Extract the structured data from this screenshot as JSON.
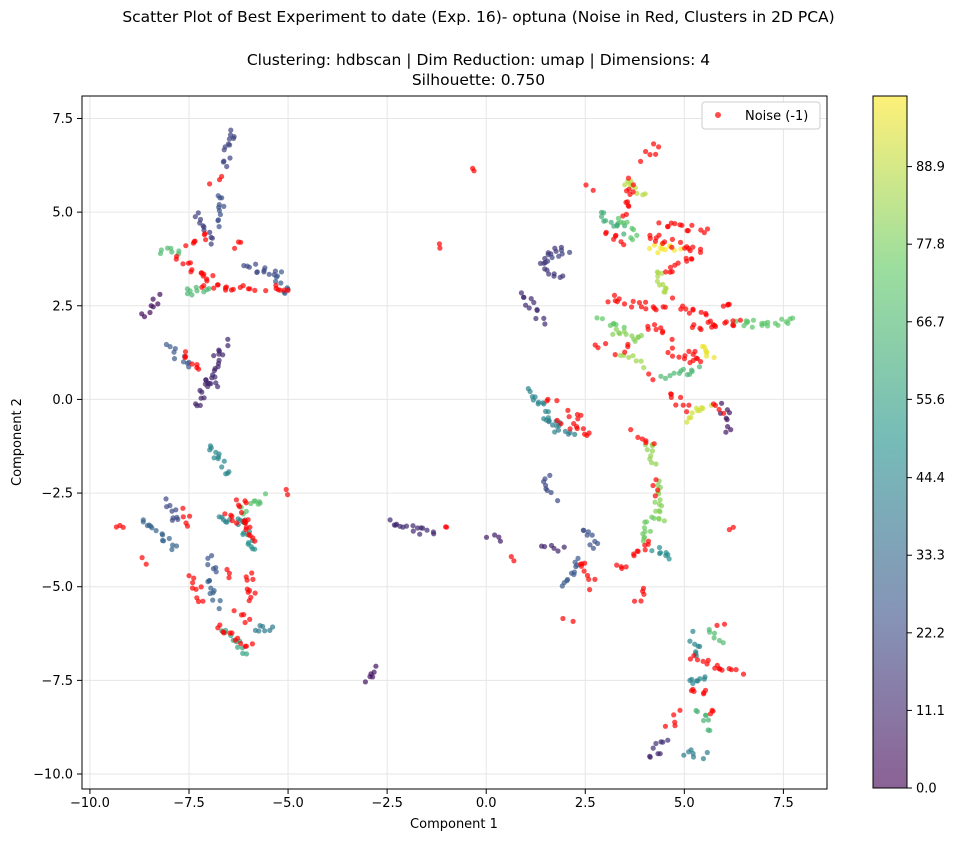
{
  "chart_data": {
    "type": "scatter",
    "title": "Scatter Plot of Best Experiment to date (Exp. 16)- optuna (Noise in Red, Clusters in 2D PCA)",
    "subtitle_lines": [
      "Clustering: hdbscan | Dim Reduction: umap | Dimensions: 4",
      "Silhouette: 0.750"
    ],
    "xlabel": "Component 1",
    "ylabel": "Component 2",
    "xlim": [
      -10.2,
      8.6
    ],
    "ylim": [
      -10.4,
      8.1
    ],
    "xticks": [
      -10.0,
      -7.5,
      -5.0,
      -2.5,
      0.0,
      2.5,
      5.0,
      7.5
    ],
    "xtick_labels": [
      "−10.0",
      "−7.5",
      "−5.0",
      "−2.5",
      "0.0",
      "2.5",
      "5.0",
      "7.5"
    ],
    "yticks": [
      -10.0,
      -7.5,
      -5.0,
      -2.5,
      0.0,
      2.5,
      5.0,
      7.5
    ],
    "ytick_labels": [
      "−10.0",
      "−7.5",
      "−5.0",
      "−2.5",
      "0.0",
      "2.5",
      "5.0",
      "7.5"
    ],
    "grid": true,
    "legend": {
      "position": "top-right",
      "entries": [
        {
          "name": "Noise (-1)",
          "color": "#ff0000"
        }
      ]
    },
    "colorbar": {
      "colormap": "viridis",
      "range": [
        0,
        99
      ],
      "tick_values": [
        0.0,
        11.1,
        22.2,
        33.3,
        44.4,
        55.6,
        66.7,
        77.8,
        88.9
      ],
      "tick_labels": [
        "0.0",
        "11.1",
        "22.2",
        "33.3",
        "44.4",
        "55.6",
        "66.7",
        "77.8",
        "88.9"
      ]
    },
    "noise_color": "#ff0000",
    "point_alpha": 0.7,
    "cluster_segments": [
      {
        "label": 3,
        "points": [
          [
            -8.7,
            2.3
          ],
          [
            -8.3,
            2.7
          ]
        ]
      },
      {
        "label": 18,
        "points": [
          [
            -7.3,
            4.9
          ],
          [
            -6.9,
            4.2
          ]
        ]
      },
      {
        "label": 20,
        "points": [
          [
            -6.6,
            6.3
          ],
          [
            -6.4,
            7.2
          ]
        ]
      },
      {
        "label": 24,
        "points": [
          [
            -6.7,
            4.7
          ],
          [
            -6.7,
            5.5
          ]
        ]
      },
      {
        "label": 22,
        "points": [
          [
            -6.1,
            3.6
          ],
          [
            -5.3,
            3.3
          ]
        ]
      },
      {
        "label": 28,
        "points": [
          [
            -5.3,
            3.4
          ],
          [
            -5.0,
            2.8
          ]
        ]
      },
      {
        "label": 68,
        "points": [
          [
            -8.2,
            4.0
          ],
          [
            -7.7,
            3.9
          ]
        ]
      },
      {
        "label": 66,
        "points": [
          [
            -7.6,
            2.8
          ],
          [
            -7.0,
            3.0
          ]
        ]
      },
      {
        "label": 27,
        "points": [
          [
            -8.0,
            1.4
          ],
          [
            -7.5,
            0.9
          ]
        ]
      },
      {
        "label": 10,
        "points": [
          [
            -7.3,
            -0.2
          ],
          [
            -6.6,
            1.5
          ]
        ]
      },
      {
        "label": 12,
        "points": [
          [
            -7.0,
            0.6
          ],
          [
            -6.8,
            0.3
          ]
        ]
      },
      {
        "label": 45,
        "points": [
          [
            -7.0,
            -1.2
          ],
          [
            -6.5,
            -2.0
          ]
        ]
      },
      {
        "label": 70,
        "points": [
          [
            -6.2,
            -3.0
          ],
          [
            -5.6,
            -2.6
          ]
        ]
      },
      {
        "label": 50,
        "points": [
          [
            -6.1,
            -3.2
          ],
          [
            -5.9,
            -4.1
          ]
        ]
      },
      {
        "label": 32,
        "points": [
          [
            -8.6,
            -3.2
          ],
          [
            -7.9,
            -4.0
          ]
        ]
      },
      {
        "label": 22,
        "points": [
          [
            -8.0,
            -2.7
          ],
          [
            -7.8,
            -3.3
          ]
        ]
      },
      {
        "label": 25,
        "points": [
          [
            -7.0,
            -4.2
          ],
          [
            -6.8,
            -4.6
          ]
        ]
      },
      {
        "label": 30,
        "points": [
          [
            -7.0,
            -4.8
          ],
          [
            -6.8,
            -5.5
          ]
        ]
      },
      {
        "label": 44,
        "points": [
          [
            -6.8,
            -3.2
          ],
          [
            -6.1,
            -3.3
          ]
        ]
      },
      {
        "label": 57,
        "points": [
          [
            -6.6,
            -6.2
          ],
          [
            -6.1,
            -6.8
          ]
        ]
      },
      {
        "label": 40,
        "points": [
          [
            -5.9,
            -6.1
          ],
          [
            -5.4,
            -6.2
          ]
        ]
      },
      {
        "label": 5,
        "points": [
          [
            -3.0,
            -7.5
          ],
          [
            -2.7,
            -7.2
          ]
        ]
      },
      {
        "label": 12,
        "points": [
          [
            -2.4,
            -3.3
          ],
          [
            -1.3,
            -3.6
          ]
        ]
      },
      {
        "label": 8,
        "points": [
          [
            0.1,
            -3.6
          ],
          [
            0.4,
            -3.7
          ]
        ]
      },
      {
        "label": 15,
        "points": [
          [
            1.4,
            3.6
          ],
          [
            1.8,
            4.1
          ]
        ]
      },
      {
        "label": 16,
        "points": [
          [
            1.5,
            3.5
          ],
          [
            1.9,
            3.2
          ]
        ]
      },
      {
        "label": 12,
        "points": [
          [
            0.9,
            2.8
          ],
          [
            1.4,
            2.1
          ]
        ]
      },
      {
        "label": 20,
        "points": [
          [
            1.5,
            3.8
          ],
          [
            2.0,
            3.9
          ]
        ]
      },
      {
        "label": 44,
        "points": [
          [
            1.1,
            0.3
          ],
          [
            1.8,
            -0.8
          ]
        ]
      },
      {
        "label": 40,
        "points": [
          [
            1.6,
            -0.6
          ],
          [
            2.2,
            -0.9
          ]
        ]
      },
      {
        "label": 22,
        "points": [
          [
            1.5,
            -2.1
          ],
          [
            1.7,
            -2.6
          ]
        ]
      },
      {
        "label": 10,
        "points": [
          [
            1.5,
            -3.9
          ],
          [
            1.9,
            -4.0
          ]
        ]
      },
      {
        "label": 28,
        "points": [
          [
            2.0,
            -5.0
          ],
          [
            2.3,
            -4.3
          ]
        ]
      },
      {
        "label": 24,
        "points": [
          [
            2.4,
            -3.4
          ],
          [
            2.8,
            -3.9
          ]
        ]
      },
      {
        "label": 62,
        "points": [
          [
            2.8,
            5.0
          ],
          [
            3.5,
            4.5
          ]
        ]
      },
      {
        "label": 72,
        "points": [
          [
            3.4,
            4.8
          ],
          [
            3.8,
            4.3
          ]
        ]
      },
      {
        "label": 88,
        "points": [
          [
            3.4,
            5.8
          ],
          [
            4.0,
            5.5
          ]
        ]
      },
      {
        "label": 98,
        "points": [
          [
            4.1,
            4.0
          ],
          [
            4.9,
            4.1
          ]
        ]
      },
      {
        "label": 86,
        "points": [
          [
            4.3,
            3.5
          ],
          [
            4.6,
            2.8
          ]
        ]
      },
      {
        "label": 74,
        "points": [
          [
            2.9,
            2.1
          ],
          [
            3.4,
            2.0
          ]
        ]
      },
      {
        "label": 80,
        "points": [
          [
            3.2,
            1.8
          ],
          [
            4.0,
            1.6
          ]
        ]
      },
      {
        "label": 84,
        "points": [
          [
            3.5,
            1.2
          ],
          [
            3.9,
            0.9
          ]
        ]
      },
      {
        "label": 96,
        "points": [
          [
            5.4,
            1.5
          ],
          [
            5.7,
            1.1
          ]
        ]
      },
      {
        "label": 72,
        "points": [
          [
            6.3,
            2.0
          ],
          [
            7.7,
            2.1
          ]
        ]
      },
      {
        "label": 66,
        "points": [
          [
            4.5,
            0.6
          ],
          [
            5.3,
            0.8
          ]
        ]
      },
      {
        "label": 92,
        "points": [
          [
            5.0,
            -0.5
          ],
          [
            5.6,
            -0.1
          ]
        ]
      },
      {
        "label": 82,
        "points": [
          [
            4.1,
            -1.1
          ],
          [
            4.2,
            -1.7
          ]
        ]
      },
      {
        "label": 80,
        "points": [
          [
            4.3,
            -2.2
          ],
          [
            4.4,
            -3.3
          ]
        ]
      },
      {
        "label": 76,
        "points": [
          [
            3.9,
            -3.8
          ],
          [
            4.2,
            -3.1
          ]
        ]
      },
      {
        "label": 48,
        "points": [
          [
            4.2,
            -4.0
          ],
          [
            4.7,
            -4.2
          ]
        ]
      },
      {
        "label": 44,
        "points": [
          [
            5.2,
            -6.3
          ],
          [
            5.4,
            -6.8
          ]
        ]
      },
      {
        "label": 68,
        "points": [
          [
            5.6,
            -6.2
          ],
          [
            5.9,
            -6.5
          ]
        ]
      },
      {
        "label": 44,
        "points": [
          [
            5.1,
            -7.6
          ],
          [
            5.6,
            -7.4
          ]
        ]
      },
      {
        "label": 64,
        "points": [
          [
            5.4,
            -8.3
          ],
          [
            5.6,
            -8.8
          ]
        ]
      },
      {
        "label": 14,
        "points": [
          [
            4.3,
            -9.2
          ],
          [
            4.6,
            -9.0
          ]
        ]
      },
      {
        "label": 10,
        "points": [
          [
            4.1,
            -9.6
          ],
          [
            4.3,
            -9.4
          ]
        ]
      },
      {
        "label": 42,
        "points": [
          [
            5.0,
            -9.4
          ],
          [
            5.5,
            -9.5
          ]
        ]
      },
      {
        "label": 6,
        "points": [
          [
            6.0,
            -0.2
          ],
          [
            6.1,
            -0.8
          ]
        ]
      }
    ],
    "noise_segments": [
      [
        [
          -7.8,
          3.8
        ],
        [
          -6.9,
          3.2
        ]
      ],
      [
        [
          -7.2,
          3.1
        ],
        [
          -5.9,
          2.9
        ]
      ],
      [
        [
          -7.5,
          4.1
        ],
        [
          -7.0,
          4.4
        ]
      ],
      [
        [
          -6.3,
          4.0
        ],
        [
          -6.2,
          4.2
        ]
      ],
      [
        [
          -5.5,
          3.0
        ],
        [
          -4.9,
          2.9
        ]
      ],
      [
        [
          -6.9,
          5.8
        ],
        [
          -6.7,
          6.0
        ]
      ],
      [
        [
          -7.6,
          1.3
        ],
        [
          -7.3,
          0.8
        ]
      ],
      [
        [
          -6.2,
          -2.6
        ],
        [
          -5.9,
          -3.8
        ]
      ],
      [
        [
          -6.6,
          -3.1
        ],
        [
          -6.0,
          -3.4
        ]
      ],
      [
        [
          -6.0,
          -4.6
        ],
        [
          -5.9,
          -5.4
        ]
      ],
      [
        [
          -6.6,
          -4.6
        ],
        [
          -6.4,
          -4.8
        ]
      ],
      [
        [
          -7.4,
          -4.7
        ],
        [
          -7.2,
          -5.4
        ]
      ],
      [
        [
          -6.8,
          -6.1
        ],
        [
          -5.9,
          -6.6
        ]
      ],
      [
        [
          -6.3,
          -5.7
        ],
        [
          -6.0,
          -6.0
        ]
      ],
      [
        [
          -7.6,
          -3.0
        ],
        [
          -7.5,
          -3.4
        ]
      ],
      [
        [
          -9.3,
          -3.4
        ],
        [
          -9.1,
          -3.5
        ]
      ],
      [
        [
          -8.6,
          -4.3
        ],
        [
          -8.5,
          -4.4
        ]
      ],
      [
        [
          -5.1,
          -2.4
        ],
        [
          -5.0,
          -2.5
        ]
      ],
      [
        [
          -0.3,
          6.2
        ],
        [
          -0.2,
          6.2
        ]
      ],
      [
        [
          -1.2,
          4.1
        ],
        [
          -1.1,
          4.1
        ]
      ],
      [
        [
          -1.0,
          -3.5
        ],
        [
          -0.9,
          -3.5
        ]
      ],
      [
        [
          0.6,
          -4.2
        ],
        [
          0.7,
          -4.2
        ]
      ],
      [
        [
          1.9,
          -0.6
        ],
        [
          2.6,
          -1.0
        ]
      ],
      [
        [
          2.0,
          -0.3
        ],
        [
          2.4,
          -0.5
        ]
      ],
      [
        [
          1.5,
          -0.1
        ],
        [
          1.7,
          0.0
        ]
      ],
      [
        [
          2.4,
          -4.3
        ],
        [
          2.7,
          -5.0
        ]
      ],
      [
        [
          2.0,
          -5.8
        ],
        [
          2.1,
          -5.9
        ]
      ],
      [
        [
          2.5,
          5.7
        ],
        [
          2.6,
          5.6
        ]
      ],
      [
        [
          3.0,
          4.5
        ],
        [
          3.5,
          4.2
        ]
      ],
      [
        [
          4.0,
          6.4
        ],
        [
          4.3,
          6.8
        ]
      ],
      [
        [
          3.5,
          4.9
        ],
        [
          3.7,
          5.9
        ]
      ],
      [
        [
          4.1,
          4.4
        ],
        [
          5.4,
          3.9
        ]
      ],
      [
        [
          4.4,
          4.7
        ],
        [
          5.5,
          4.5
        ]
      ],
      [
        [
          3.1,
          2.7
        ],
        [
          4.5,
          2.4
        ]
      ],
      [
        [
          4.5,
          3.4
        ],
        [
          5.2,
          3.8
        ]
      ],
      [
        [
          4.0,
          2.0
        ],
        [
          4.6,
          1.7
        ]
      ],
      [
        [
          4.8,
          2.6
        ],
        [
          5.6,
          2.2
        ]
      ],
      [
        [
          4.6,
          1.3
        ],
        [
          5.4,
          1.0
        ]
      ],
      [
        [
          5.2,
          1.9
        ],
        [
          6.4,
          2.1
        ]
      ],
      [
        [
          5.9,
          2.4
        ],
        [
          6.2,
          2.5
        ]
      ],
      [
        [
          3.3,
          1.3
        ],
        [
          3.6,
          1.5
        ]
      ],
      [
        [
          2.8,
          1.4
        ],
        [
          3.0,
          1.5
        ]
      ],
      [
        [
          4.6,
          0.2
        ],
        [
          5.1,
          -0.3
        ]
      ],
      [
        [
          4.2,
          0.6
        ],
        [
          4.3,
          0.5
        ]
      ],
      [
        [
          5.1,
          1.3
        ],
        [
          5.3,
          1.0
        ]
      ],
      [
        [
          5.7,
          -0.2
        ],
        [
          6.0,
          -0.3
        ]
      ],
      [
        [
          3.7,
          -0.9
        ],
        [
          4.2,
          -1.1
        ]
      ],
      [
        [
          4.2,
          -2.2
        ],
        [
          4.3,
          -2.5
        ]
      ],
      [
        [
          3.7,
          -4.2
        ],
        [
          4.2,
          -3.8
        ]
      ],
      [
        [
          4.0,
          -5.0
        ],
        [
          3.8,
          -5.4
        ]
      ],
      [
        [
          3.3,
          -4.4
        ],
        [
          3.6,
          -4.5
        ]
      ],
      [
        [
          5.2,
          -6.9
        ],
        [
          6.4,
          -7.3
        ]
      ],
      [
        [
          5.1,
          -7.8
        ],
        [
          5.6,
          -7.8
        ]
      ],
      [
        [
          4.9,
          -8.4
        ],
        [
          4.6,
          -8.7
        ]
      ],
      [
        [
          5.9,
          -6.0
        ],
        [
          6.0,
          -5.9
        ]
      ],
      [
        [
          6.3,
          -3.5
        ],
        [
          6.2,
          -3.4
        ]
      ],
      [
        [
          5.6,
          -8.3
        ],
        [
          5.8,
          -8.4
        ]
      ]
    ]
  }
}
